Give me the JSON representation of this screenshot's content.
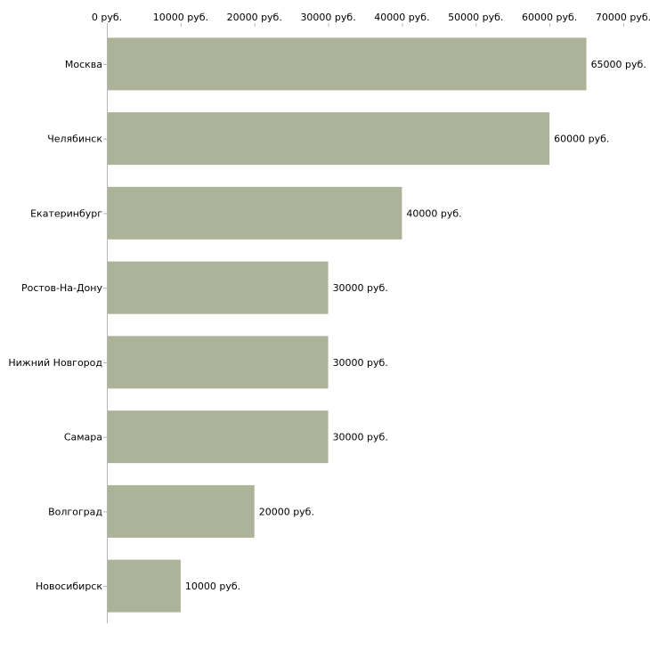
{
  "chart_data": {
    "type": "bar",
    "orientation": "horizontal",
    "title": "",
    "xlabel": "",
    "ylabel": "",
    "unit": "руб.",
    "xlim": [
      0,
      70000
    ],
    "x_ticks": [
      0,
      10000,
      20000,
      30000,
      40000,
      50000,
      60000,
      70000
    ],
    "x_tick_labels": [
      "0 руб.",
      "10000 руб.",
      "20000 руб.",
      "30000 руб.",
      "40000 руб.",
      "50000 руб.",
      "60000 руб.",
      "70000 руб."
    ],
    "categories": [
      "Москва",
      "Челябинск",
      "Екатеринбург",
      "Ростов-На-Дону",
      "Нижний Новгород",
      "Самара",
      "Волгоград",
      "Новосибирск"
    ],
    "values": [
      65000,
      60000,
      40000,
      30000,
      30000,
      30000,
      20000,
      10000
    ],
    "value_labels": [
      "65000 руб.",
      "60000 руб.",
      "40000 руб.",
      "30000 руб.",
      "30000 руб.",
      "30000 руб.",
      "20000 руб.",
      "10000 руб."
    ],
    "bar_color": "#adb398",
    "grid": false,
    "axis_position": "top"
  }
}
